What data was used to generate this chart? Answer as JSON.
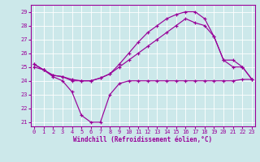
{
  "xlabel": "Windchill (Refroidissement éolien,°C)",
  "background_color": "#cce8ea",
  "line_color": "#990099",
  "xlim_min": -0.3,
  "xlim_max": 23.3,
  "ylim_min": 20.7,
  "ylim_max": 29.5,
  "yticks": [
    21,
    22,
    23,
    24,
    25,
    26,
    27,
    28,
    29
  ],
  "xticks": [
    0,
    1,
    2,
    3,
    4,
    5,
    6,
    7,
    8,
    9,
    10,
    11,
    12,
    13,
    14,
    15,
    16,
    17,
    18,
    19,
    20,
    21,
    22,
    23
  ],
  "line1_x": [
    0,
    1,
    2,
    3,
    4,
    5,
    6,
    7,
    8,
    9,
    10,
    11,
    12,
    13,
    14,
    15,
    16,
    17,
    18,
    19,
    20,
    21,
    22,
    23
  ],
  "line1_y": [
    25.0,
    24.8,
    24.3,
    24.0,
    23.2,
    21.5,
    21.0,
    21.0,
    23.0,
    23.8,
    24.0,
    24.0,
    24.0,
    24.0,
    24.0,
    24.0,
    24.0,
    24.0,
    24.0,
    24.0,
    24.0,
    24.0,
    24.1,
    24.1
  ],
  "line2_x": [
    0,
    1,
    2,
    3,
    4,
    5,
    6,
    7,
    8,
    9,
    10,
    11,
    12,
    13,
    14,
    15,
    16,
    17,
    18,
    19,
    20,
    21,
    22,
    23
  ],
  "line2_y": [
    25.2,
    24.8,
    24.4,
    24.3,
    24.1,
    24.0,
    24.0,
    24.2,
    24.5,
    25.0,
    25.5,
    26.0,
    26.5,
    27.0,
    27.5,
    28.0,
    28.5,
    28.2,
    28.0,
    27.2,
    25.5,
    25.0,
    25.0,
    24.1
  ],
  "line3_x": [
    0,
    1,
    2,
    3,
    4,
    5,
    6,
    7,
    8,
    9,
    10,
    11,
    12,
    13,
    14,
    15,
    16,
    17,
    18,
    19,
    20,
    21,
    22,
    23
  ],
  "line3_y": [
    25.2,
    24.8,
    24.4,
    24.3,
    24.0,
    24.0,
    24.0,
    24.2,
    24.5,
    25.2,
    26.0,
    26.8,
    27.5,
    28.0,
    28.5,
    28.8,
    29.0,
    29.0,
    28.5,
    27.2,
    25.5,
    25.5,
    25.0,
    24.1
  ]
}
